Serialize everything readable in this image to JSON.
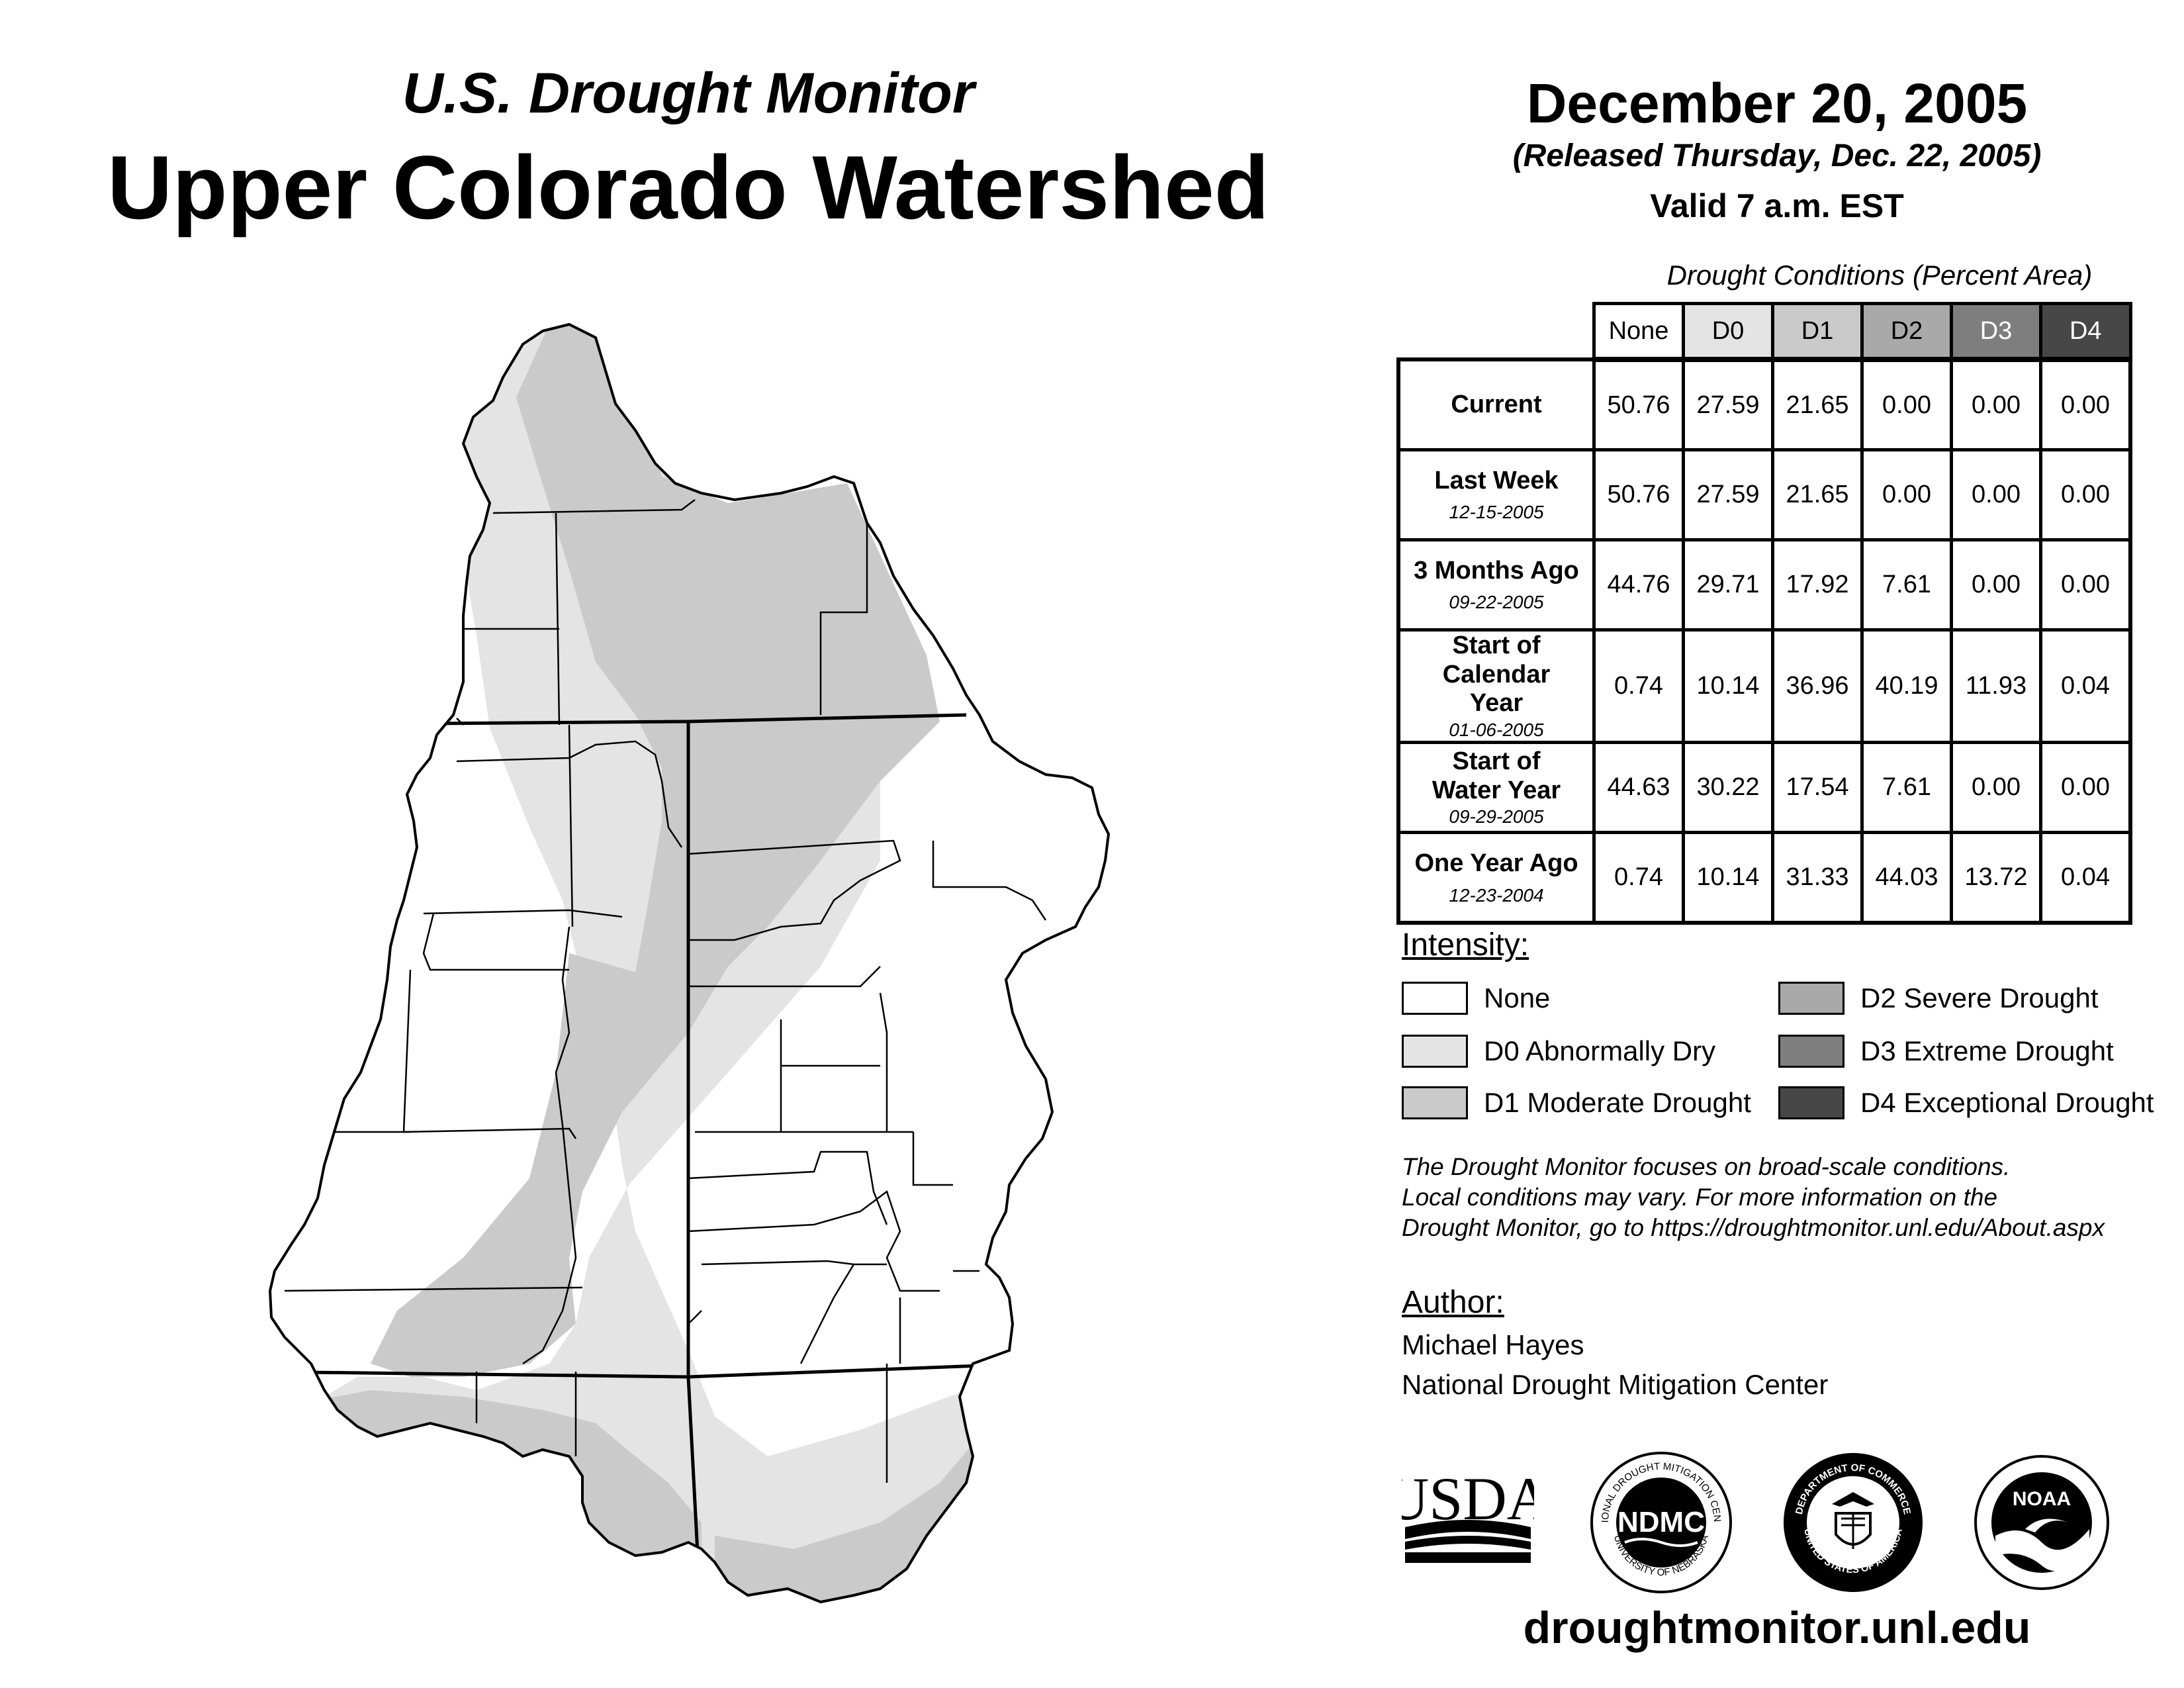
{
  "header": {
    "subtitle": "U.S. Drought Monitor",
    "title": "Upper Colorado Watershed",
    "date": "December 20, 2005",
    "released": "(Released Thursday, Dec. 22, 2005)",
    "valid": "Valid 7 a.m. EST"
  },
  "table": {
    "caption": "Drought Conditions (Percent Area)",
    "columns": [
      "None",
      "D0",
      "D1",
      "D2",
      "D3",
      "D4"
    ],
    "rows": [
      {
        "label": "Current",
        "date": "",
        "values": [
          "50.76",
          "27.59",
          "21.65",
          "0.00",
          "0.00",
          "0.00"
        ]
      },
      {
        "label": "Last Week",
        "date": "12-15-2005",
        "values": [
          "50.76",
          "27.59",
          "21.65",
          "0.00",
          "0.00",
          "0.00"
        ]
      },
      {
        "label": "3 Months Ago",
        "date": "09-22-2005",
        "values": [
          "44.76",
          "29.71",
          "17.92",
          "7.61",
          "0.00",
          "0.00"
        ]
      },
      {
        "label": "Start of Calendar Year",
        "date": "01-06-2005",
        "values": [
          "0.74",
          "10.14",
          "36.96",
          "40.19",
          "11.93",
          "0.04"
        ]
      },
      {
        "label": "Start of Water Year",
        "date": "09-29-2005",
        "values": [
          "44.63",
          "30.22",
          "17.54",
          "7.61",
          "0.00",
          "0.00"
        ]
      },
      {
        "label": "One Year Ago",
        "date": "12-23-2004",
        "values": [
          "0.74",
          "10.14",
          "31.33",
          "44.03",
          "13.72",
          "0.04"
        ]
      }
    ]
  },
  "legend": {
    "title": "Intensity:",
    "items": [
      {
        "label": "None",
        "color": "#ffffff"
      },
      {
        "label": "D0 Abnormally Dry",
        "color": "#e4e4e4"
      },
      {
        "label": "D1 Moderate Drought",
        "color": "#cacaca"
      },
      {
        "label": "D2 Severe Drought",
        "color": "#a9a9a9"
      },
      {
        "label": "D3 Extreme Drought",
        "color": "#7e7e7e"
      },
      {
        "label": "D4 Exceptional Drought",
        "color": "#474747"
      }
    ]
  },
  "note": {
    "line1": "The Drought Monitor focuses on broad-scale conditions.",
    "line2": "Local conditions may vary. For more information on the",
    "line3": "Drought Monitor, go to https://droughtmonitor.unl.edu/About.aspx"
  },
  "author": {
    "title": "Author:",
    "name": "Michael Hayes",
    "org": "National Drought Mitigation Center"
  },
  "logos": {
    "usda": "USDA",
    "ndmc": "NDMC",
    "ndmc_ring": "NATIONAL DROUGHT MITIGATION CENTER",
    "ndmc_ring_bottom": "UNIVERSITY OF NEBRASKA",
    "doc_ring_top": "DEPARTMENT OF COMMERCE",
    "doc_ring_bottom": "UNITED STATES OF AMERICA",
    "noaa": "NOAA"
  },
  "footer": {
    "url": "droughtmonitor.unl.edu"
  }
}
